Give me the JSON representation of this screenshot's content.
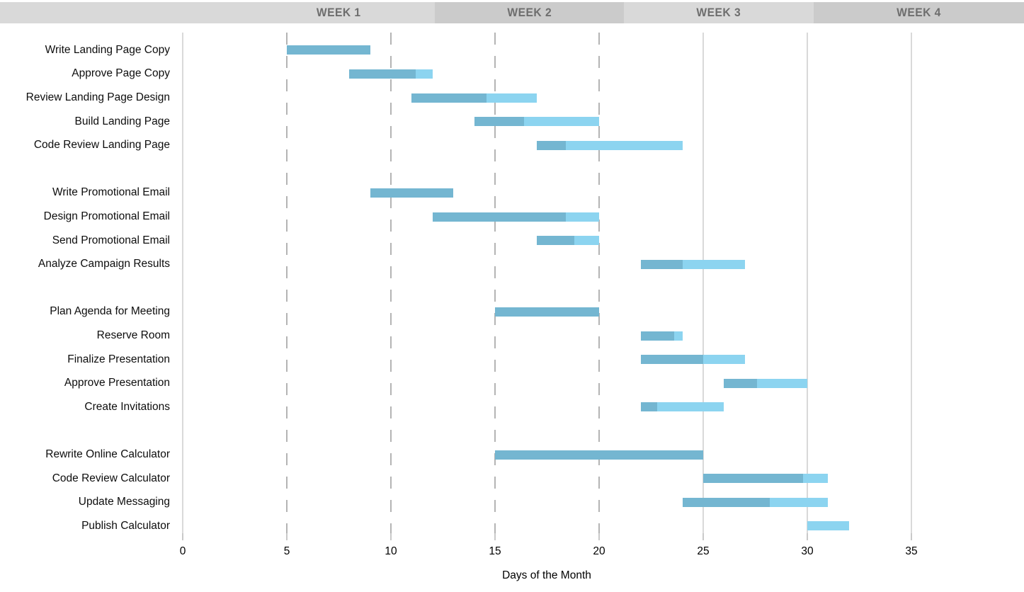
{
  "header": {
    "weeks": [
      {
        "label": "WEEK 1",
        "day_start": 2.9,
        "day_end": 12.1,
        "shade": "light"
      },
      {
        "label": "WEEK 2",
        "day_start": 12.1,
        "day_end": 21.2,
        "shade": "dark"
      },
      {
        "label": "WEEK 3",
        "day_start": 21.2,
        "day_end": 30.3,
        "shade": "light"
      },
      {
        "label": "WEEK 4",
        "day_start": 30.3,
        "day_end": 40.4,
        "shade": "dark"
      }
    ]
  },
  "chart_data": {
    "type": "bar",
    "subtype": "gantt",
    "title": "",
    "xlabel": "Days of the Month",
    "ylabel": "",
    "xlim": [
      0,
      40
    ],
    "x_ticks": [
      0,
      5,
      10,
      15,
      20,
      25,
      30,
      35
    ],
    "dashed_gridline_days": [
      5,
      10,
      15,
      20
    ],
    "solid_gridline_days": [
      0,
      25,
      30,
      35
    ],
    "legend": null,
    "grid": true,
    "tasks": [
      {
        "name": "Write Landing Page Copy",
        "group": 1,
        "start_day": 5,
        "end_day": 9,
        "pct_complete": 100
      },
      {
        "name": "Approve Page Copy",
        "group": 1,
        "start_day": 8,
        "end_day": 12,
        "pct_complete": 80
      },
      {
        "name": "Review Landing Page Design",
        "group": 1,
        "start_day": 11,
        "end_day": 17,
        "pct_complete": 60
      },
      {
        "name": "Build Landing Page",
        "group": 1,
        "start_day": 14,
        "end_day": 20,
        "pct_complete": 40
      },
      {
        "name": "Code Review Landing Page",
        "group": 1,
        "start_day": 17,
        "end_day": 24,
        "pct_complete": 20
      },
      {
        "name": "Write Promotional Email",
        "group": 2,
        "start_day": 9,
        "end_day": 13,
        "pct_complete": 100
      },
      {
        "name": "Design Promotional Email",
        "group": 2,
        "start_day": 12,
        "end_day": 20,
        "pct_complete": 80
      },
      {
        "name": "Send Promotional Email",
        "group": 2,
        "start_day": 17,
        "end_day": 20,
        "pct_complete": 60
      },
      {
        "name": "Analyze Campaign Results",
        "group": 2,
        "start_day": 22,
        "end_day": 27,
        "pct_complete": 40
      },
      {
        "name": "Plan Agenda for Meeting",
        "group": 3,
        "start_day": 15,
        "end_day": 20,
        "pct_complete": 100
      },
      {
        "name": "Reserve Room",
        "group": 3,
        "start_day": 22,
        "end_day": 24,
        "pct_complete": 80
      },
      {
        "name": "Finalize Presentation",
        "group": 3,
        "start_day": 22,
        "end_day": 27,
        "pct_complete": 60
      },
      {
        "name": "Approve Presentation",
        "group": 3,
        "start_day": 26,
        "end_day": 30,
        "pct_complete": 40
      },
      {
        "name": "Create Invitations",
        "group": 3,
        "start_day": 22,
        "end_day": 26,
        "pct_complete": 20
      },
      {
        "name": "Rewrite Online Calculator",
        "group": 4,
        "start_day": 15,
        "end_day": 25,
        "pct_complete": 100
      },
      {
        "name": "Code Review Calculator",
        "group": 4,
        "start_day": 25,
        "end_day": 31,
        "pct_complete": 80
      },
      {
        "name": "Update Messaging",
        "group": 4,
        "start_day": 24,
        "end_day": 31,
        "pct_complete": 60
      },
      {
        "name": "Publish Calculator",
        "group": 4,
        "start_day": 30,
        "end_day": 32,
        "pct_complete": 0
      }
    ]
  },
  "colors": {
    "bar_complete": "#74B6D1",
    "bar_remaining": "#8CD4F0",
    "band_light": "#d9d9d9",
    "band_dark": "#cbcbcb",
    "band_text": "#6e6e6e",
    "gridline_dashed": "#b4b4b4",
    "gridline_solid": "#d9d9d9",
    "axis_text": "#000000",
    "task_text": "#0d0d0d"
  }
}
